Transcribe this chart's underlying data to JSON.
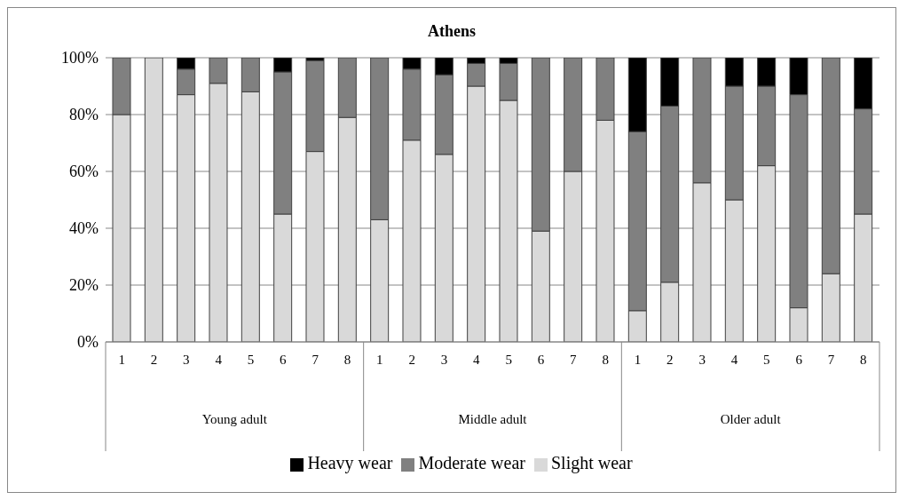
{
  "chart_data": {
    "type": "bar",
    "title": "Athens",
    "stacked": true,
    "categories": [
      "1",
      "2",
      "3",
      "4",
      "5",
      "6",
      "7",
      "8",
      "1",
      "2",
      "3",
      "4",
      "5",
      "6",
      "7",
      "8",
      "1",
      "2",
      "3",
      "4",
      "5",
      "6",
      "7",
      "8"
    ],
    "annotations": [
      "Young adult",
      "Middle adult",
      "Older adult"
    ],
    "series": [
      {
        "name": "Slight wear",
        "color": "#d9d9d9",
        "values": [
          80,
          100,
          87,
          91,
          88,
          45,
          67,
          79,
          43,
          71,
          66,
          90,
          85,
          39,
          60,
          78,
          11,
          21,
          56,
          50,
          62,
          12,
          24,
          45
        ]
      },
      {
        "name": "Moderate wear",
        "color": "#808080",
        "values": [
          20,
          0,
          9,
          9,
          12,
          50,
          32,
          21,
          57,
          25,
          28,
          8,
          13,
          61,
          40,
          22,
          63,
          62,
          44,
          40,
          28,
          75,
          76,
          37
        ]
      },
      {
        "name": "Heavy wear",
        "color": "#000000",
        "values": [
          0,
          0,
          4,
          0,
          0,
          5,
          1,
          0,
          0,
          4,
          6,
          2,
          2,
          0,
          0,
          0,
          26,
          17,
          0,
          10,
          10,
          13,
          0,
          18
        ]
      }
    ],
    "ylim": [
      0,
      100
    ],
    "yticks": [
      {
        "value": 0,
        "label": "0%"
      },
      {
        "value": 20,
        "label": "20%"
      },
      {
        "value": 40,
        "label": "40%"
      },
      {
        "value": 60,
        "label": "60%"
      },
      {
        "value": 80,
        "label": "80%"
      },
      {
        "value": 100,
        "label": "100%"
      }
    ],
    "grid": "y",
    "legend": "bottom"
  }
}
